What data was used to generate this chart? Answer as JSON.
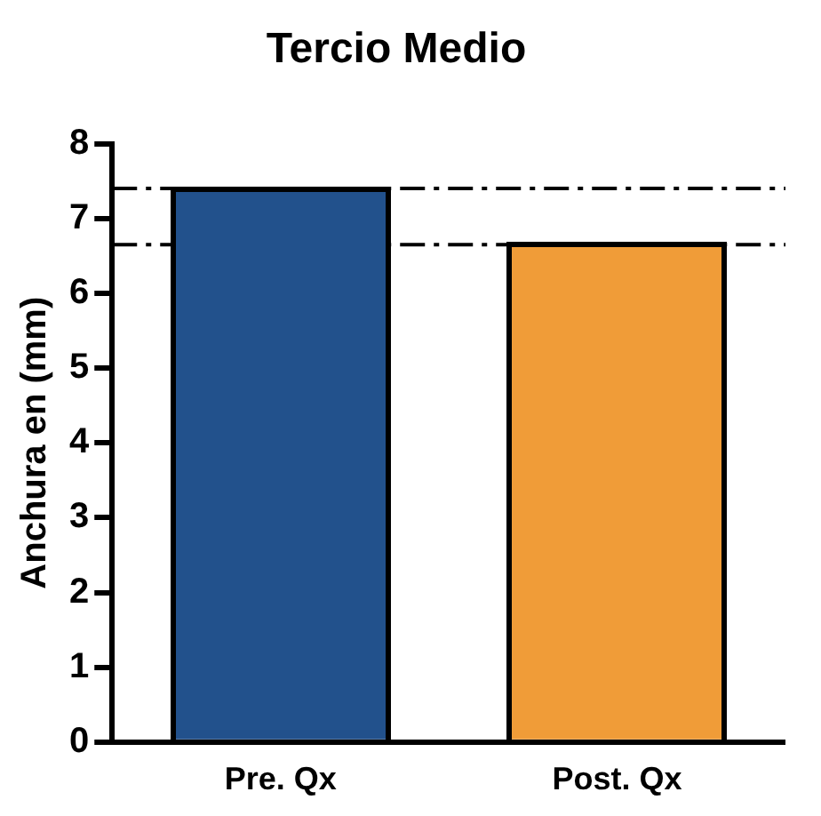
{
  "chart_data": {
    "type": "bar",
    "title": "Tercio Medio",
    "ylabel": "Anchura en (mm)",
    "categories": [
      "Pre. Qx",
      "Post. Qx"
    ],
    "values": [
      7.4,
      6.65
    ],
    "colors": [
      "#22518c",
      "#f09c38"
    ],
    "ylim": [
      0,
      8
    ],
    "yticks": [
      0,
      1,
      2,
      3,
      4,
      5,
      6,
      7,
      8
    ],
    "grid": false,
    "legend": false,
    "ref_lines": [
      {
        "axis": "y",
        "value": 7.4,
        "line_style": "dashed",
        "color": "#000000"
      },
      {
        "axis": "y",
        "value": 6.65,
        "line_style": "dashed",
        "color": "#000000"
      }
    ]
  }
}
